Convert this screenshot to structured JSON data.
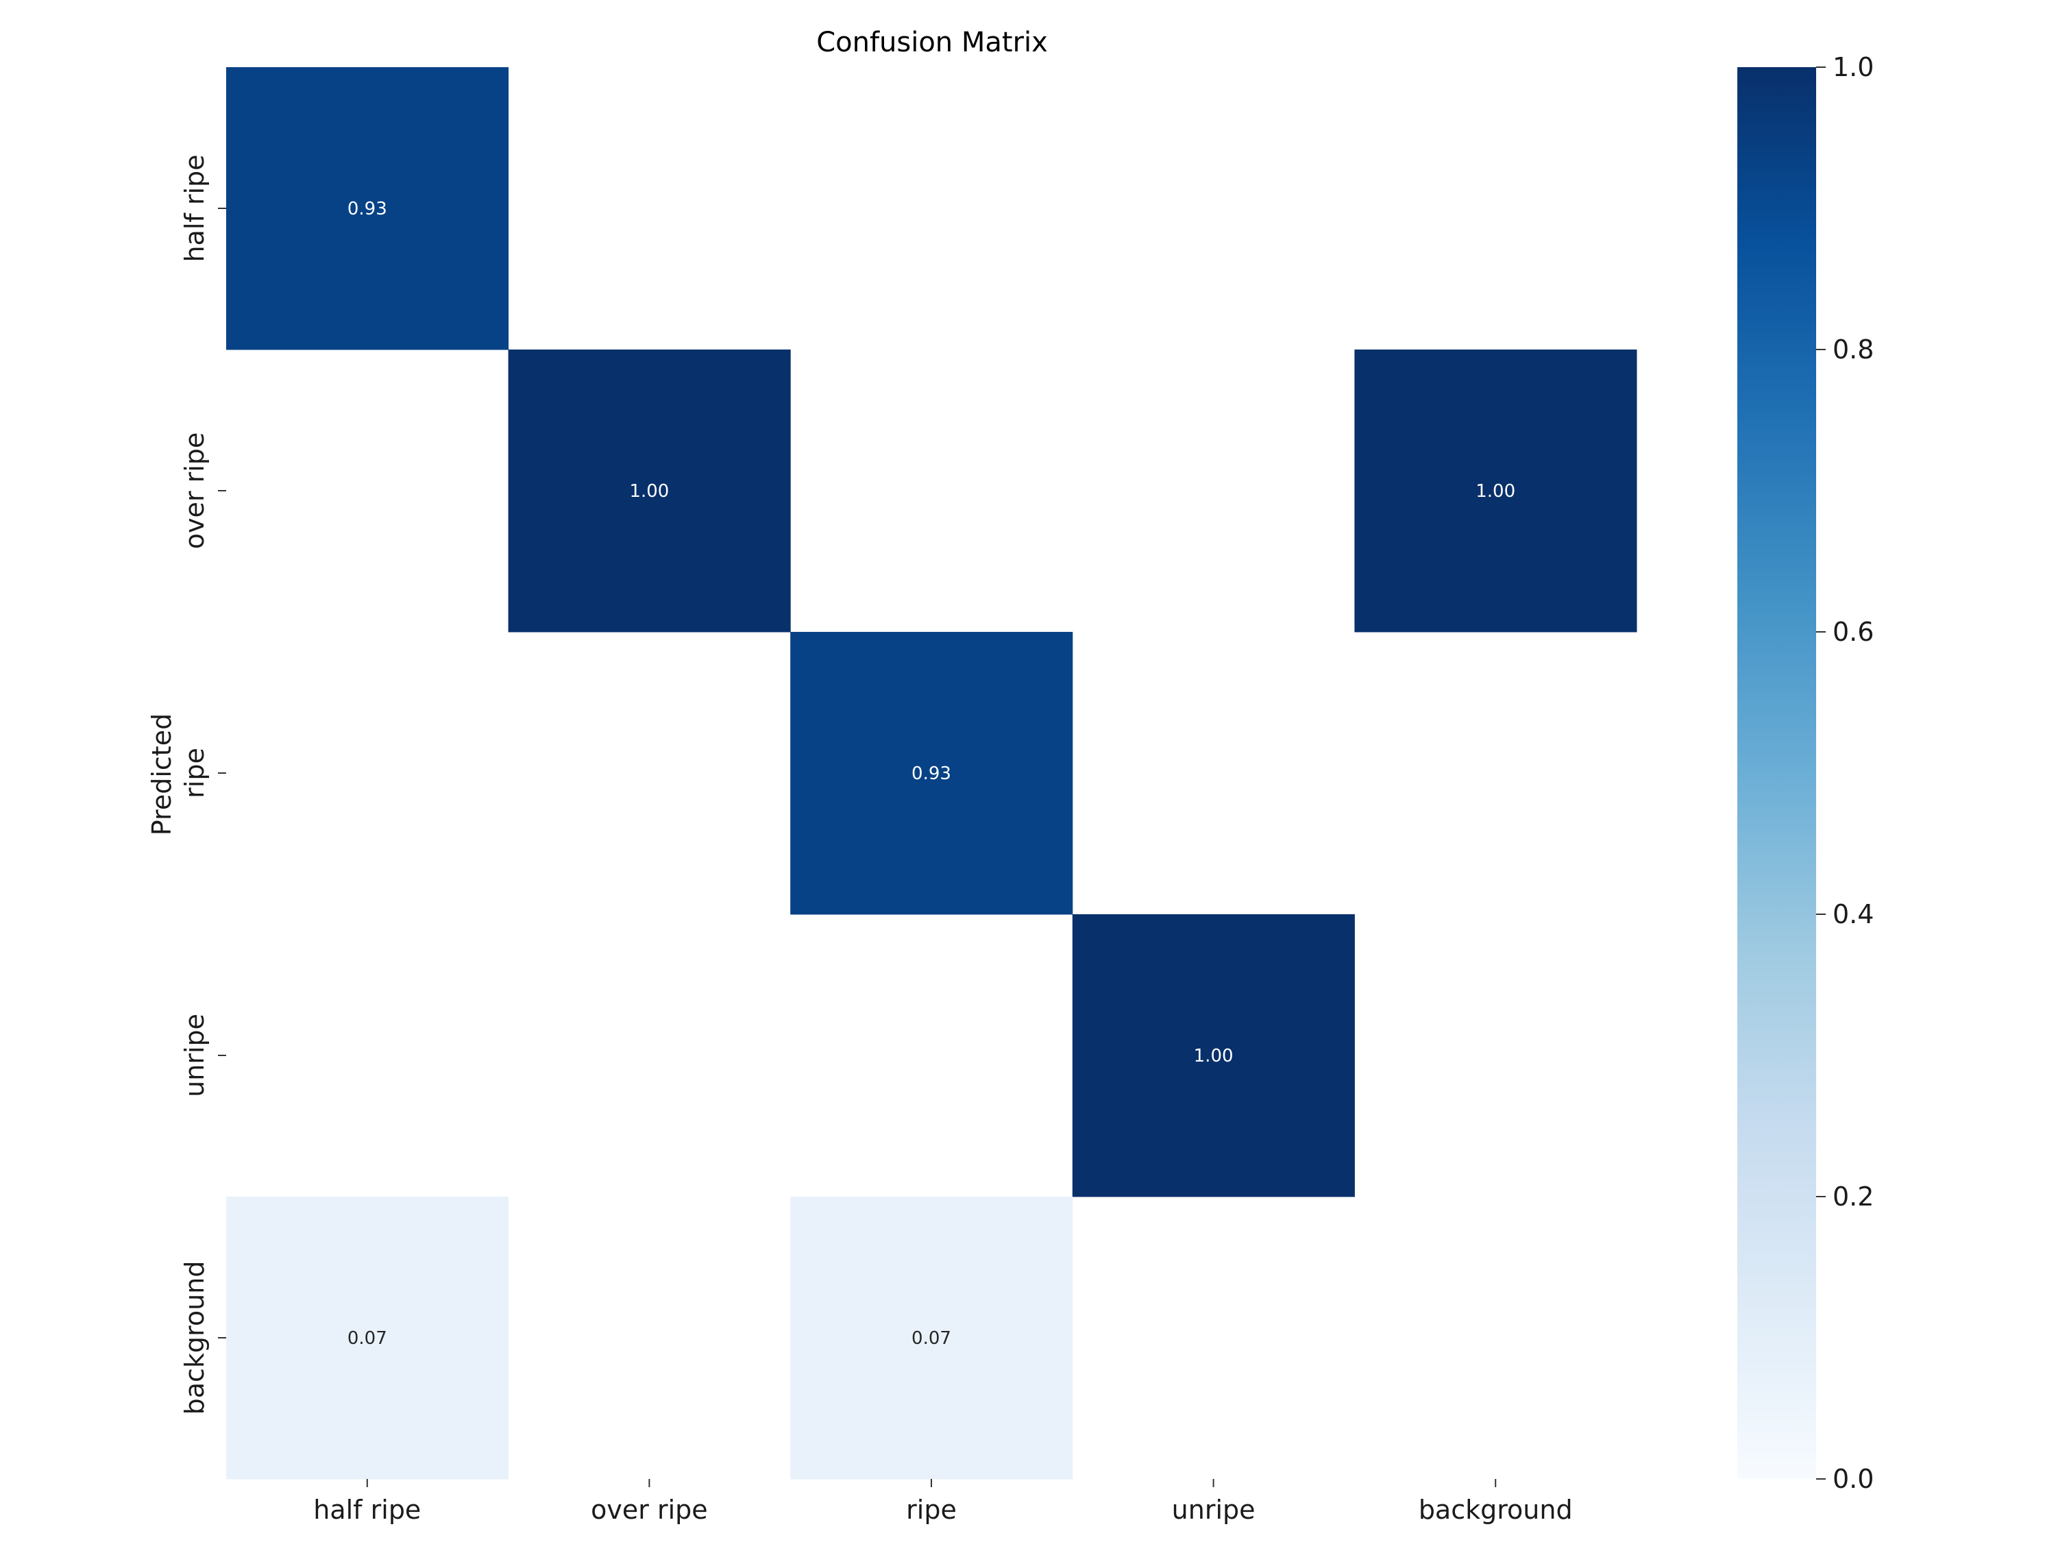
{
  "chart_data": {
    "type": "heatmap",
    "title": "Confusion Matrix",
    "xlabel": "",
    "ylabel": "Predicted",
    "x_categories": [
      "half ripe",
      "over ripe",
      "ripe",
      "unripe",
      "background"
    ],
    "y_categories": [
      "half ripe",
      "over ripe",
      "ripe",
      "unripe",
      "background"
    ],
    "values": [
      [
        0.93,
        null,
        null,
        null,
        null
      ],
      [
        null,
        1.0,
        null,
        null,
        1.0
      ],
      [
        null,
        null,
        0.93,
        null,
        null
      ],
      [
        null,
        null,
        null,
        1.0,
        null
      ],
      [
        0.07,
        null,
        0.07,
        null,
        null
      ]
    ],
    "value_labels": [
      [
        "0.93",
        "",
        "",
        "",
        ""
      ],
      [
        "",
        "1.00",
        "",
        "",
        "1.00"
      ],
      [
        "",
        "",
        "0.93",
        "",
        ""
      ],
      [
        "",
        "",
        "",
        "1.00",
        ""
      ],
      [
        "0.07",
        "",
        "0.07",
        "",
        ""
      ]
    ],
    "colorbar": {
      "colormap": "Blues",
      "range": [
        0.0,
        1.0
      ],
      "ticks": [
        "0.0",
        "0.2",
        "0.4",
        "0.6",
        "0.8",
        "1.0"
      ],
      "position": "right"
    },
    "empty_cell_color": "#ffffff",
    "grid": false
  }
}
